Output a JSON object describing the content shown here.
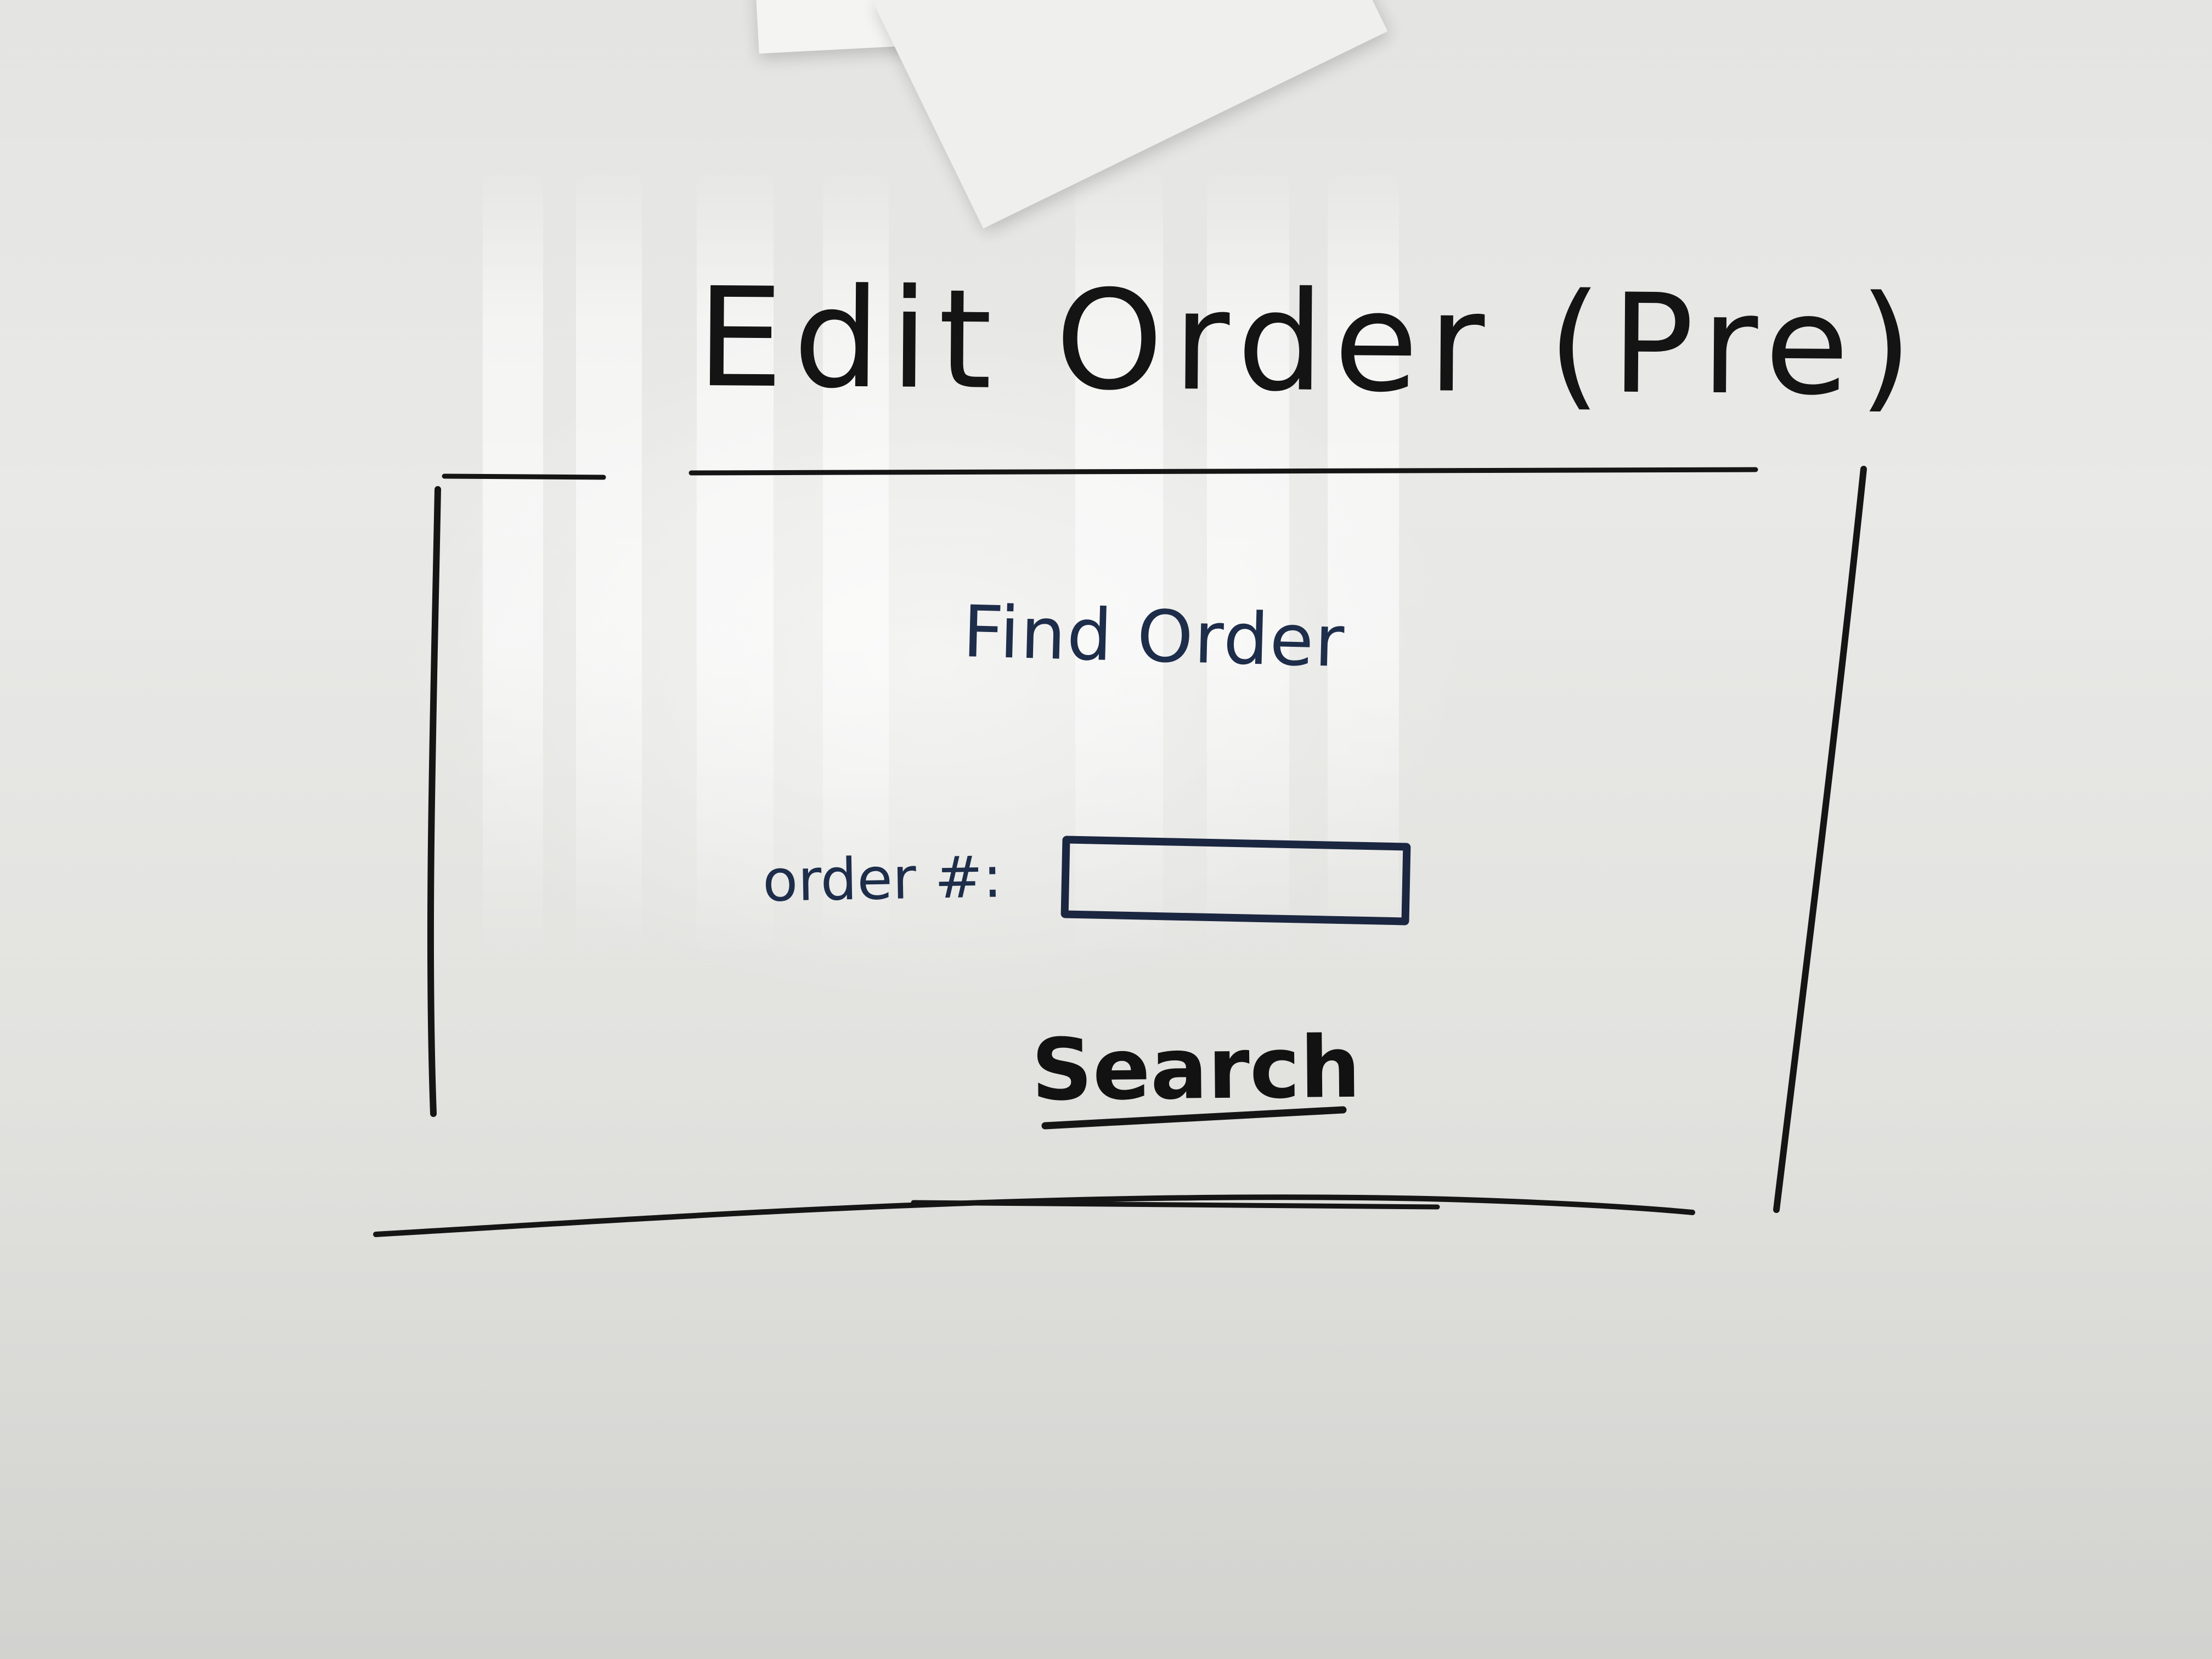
{
  "page": {
    "title": "Edit Order (Pre)"
  },
  "form": {
    "heading": "Find Order",
    "order_number_label": "order #:",
    "order_number_value": "",
    "search_label": "Search"
  },
  "colors": {
    "board": "#e6e6e4",
    "black_marker": "#141414",
    "blue_marker": "#1d2d4a"
  }
}
